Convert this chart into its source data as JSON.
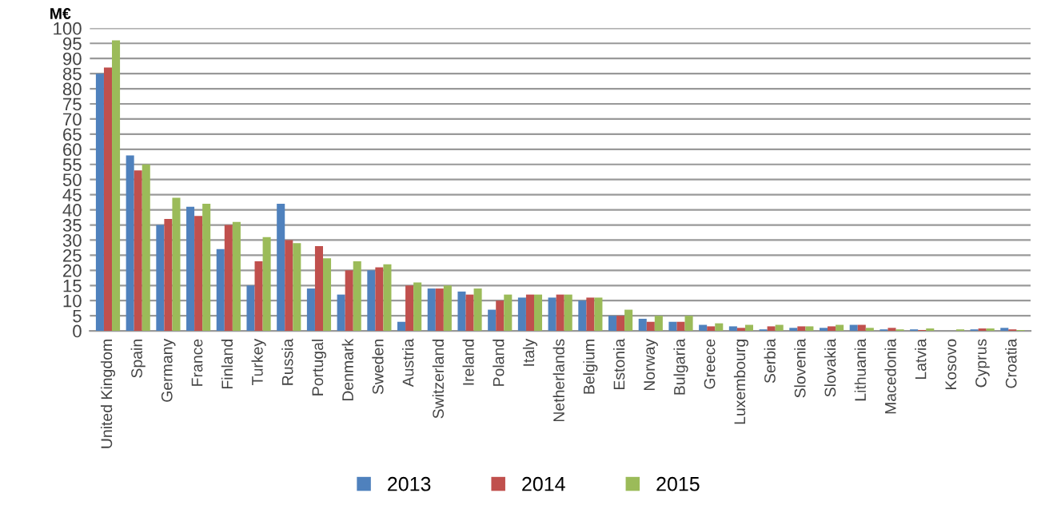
{
  "chart_data": {
    "type": "bar",
    "ylabel": "M€",
    "categories": [
      "United Kingdom",
      "Spain",
      "Germany",
      "France",
      "Finland",
      "Turkey",
      "Russia",
      "Portugal",
      "Denmark",
      "Sweden",
      "Austria",
      "Switzerland",
      "Ireland",
      "Poland",
      "Italy",
      "Netherlands",
      "Belgium",
      "Estonia",
      "Norway",
      "Bulgaria",
      "Greece",
      "Luxembourg",
      "Serbia",
      "Slovenia",
      "Slovakia",
      "Lithuania",
      "Macedonia",
      "Latvia",
      "Kosovo",
      "Cyprus",
      "Croatia"
    ],
    "series": [
      {
        "name": "2013",
        "color": "#4f81bd",
        "values": [
          85,
          58,
          35,
          41,
          27,
          15,
          42,
          14,
          12,
          20,
          3,
          14,
          13,
          7,
          11,
          11,
          10,
          5,
          4,
          3,
          2,
          1.5,
          0.5,
          1,
          1,
          2,
          0.5,
          0.5,
          0,
          0.5,
          1
        ]
      },
      {
        "name": "2014",
        "color": "#c0504d",
        "values": [
          87,
          53,
          37,
          38,
          35,
          23,
          30,
          28,
          20,
          21,
          15,
          14,
          12,
          10,
          12,
          12,
          11,
          5,
          3,
          3,
          1.5,
          1,
          1.5,
          1.5,
          1.5,
          2,
          1,
          0.3,
          0,
          0.8,
          0.5
        ]
      },
      {
        "name": "2015",
        "color": "#9bbb59",
        "values": [
          96,
          55,
          44,
          42,
          36,
          31,
          29,
          24,
          23,
          22,
          16,
          15,
          14,
          12,
          12,
          12,
          11,
          7,
          5,
          5,
          2.5,
          2,
          2,
          1.5,
          2,
          1,
          0.5,
          0.8,
          0.5,
          0.8,
          0.3
        ]
      }
    ],
    "ylim": [
      0,
      100
    ],
    "yticks": [
      0,
      5,
      10,
      15,
      20,
      25,
      30,
      35,
      40,
      45,
      50,
      55,
      60,
      65,
      70,
      75,
      80,
      85,
      90,
      95,
      100
    ],
    "grid": "y",
    "legend": "bottom"
  }
}
